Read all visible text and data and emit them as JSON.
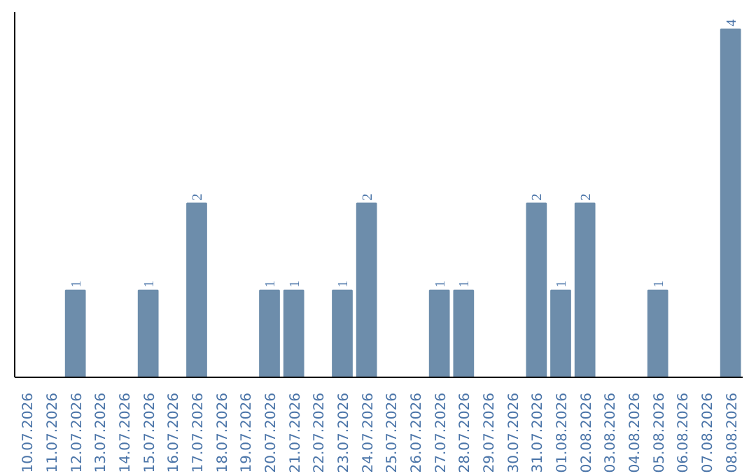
{
  "chart_data": {
    "type": "bar",
    "categories": [
      "10.07.2026",
      "11.07.2026",
      "12.07.2026",
      "13.07.2026",
      "14.07.2026",
      "15.07.2026",
      "16.07.2026",
      "17.07.2026",
      "18.07.2026",
      "19.07.2026",
      "20.07.2026",
      "21.07.2026",
      "22.07.2026",
      "23.07.2026",
      "24.07.2026",
      "25.07.2026",
      "26.07.2026",
      "27.07.2026",
      "28.07.2026",
      "29.07.2026",
      "30.07.2026",
      "31.07.2026",
      "01.08.2026",
      "02.08.2026",
      "03.08.2026",
      "04.08.2026",
      "05.08.2026",
      "06.08.2026",
      "07.08.2026",
      "08.08.2026"
    ],
    "values": [
      0,
      0,
      1,
      0,
      0,
      1,
      0,
      2,
      0,
      0,
      1,
      1,
      0,
      1,
      2,
      0,
      0,
      1,
      1,
      0,
      0,
      2,
      1,
      2,
      0,
      0,
      1,
      0,
      0,
      4
    ],
    "value_labels": [
      null,
      null,
      "1",
      null,
      null,
      "1",
      null,
      "2",
      null,
      null,
      "1",
      "1",
      null,
      "1",
      "2",
      null,
      null,
      "1",
      "1",
      null,
      null,
      "2",
      "1",
      "2",
      null,
      null,
      "1",
      null,
      null,
      "4"
    ],
    "color": "#6d8dab",
    "ylim": [
      0,
      4.2
    ],
    "tick_labels": "x",
    "grid": false
  }
}
